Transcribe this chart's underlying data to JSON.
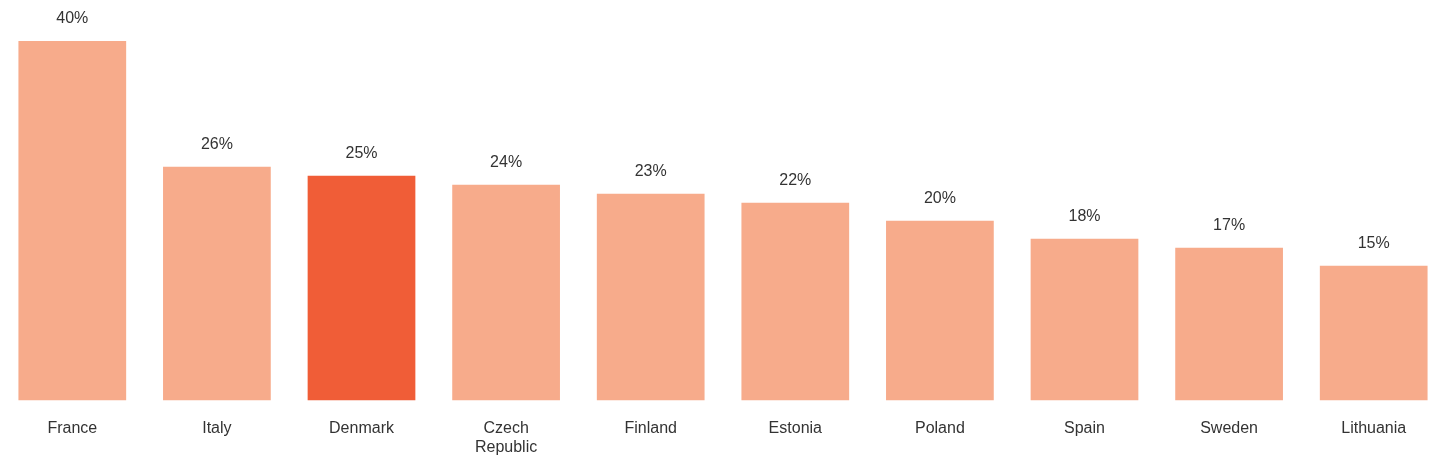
{
  "chart_data": {
    "type": "bar",
    "categories": [
      "France",
      "Italy",
      "Denmark",
      "Czech Republic",
      "Finland",
      "Estonia",
      "Poland",
      "Spain",
      "Sweden",
      "Lithuania"
    ],
    "values": [
      40,
      26,
      25,
      24,
      23,
      22,
      20,
      18,
      17,
      15
    ],
    "colors": [
      "#f7ab8b",
      "#f7ab8b",
      "#f05d37",
      "#f7ab8b",
      "#f7ab8b",
      "#f7ab8b",
      "#f7ab8b",
      "#f7ab8b",
      "#f7ab8b",
      "#f7ab8b"
    ],
    "value_labels": [
      "40%",
      "26%",
      "25%",
      "24%",
      "23%",
      "22%",
      "20%",
      "18%",
      "17%",
      "15%"
    ]
  }
}
